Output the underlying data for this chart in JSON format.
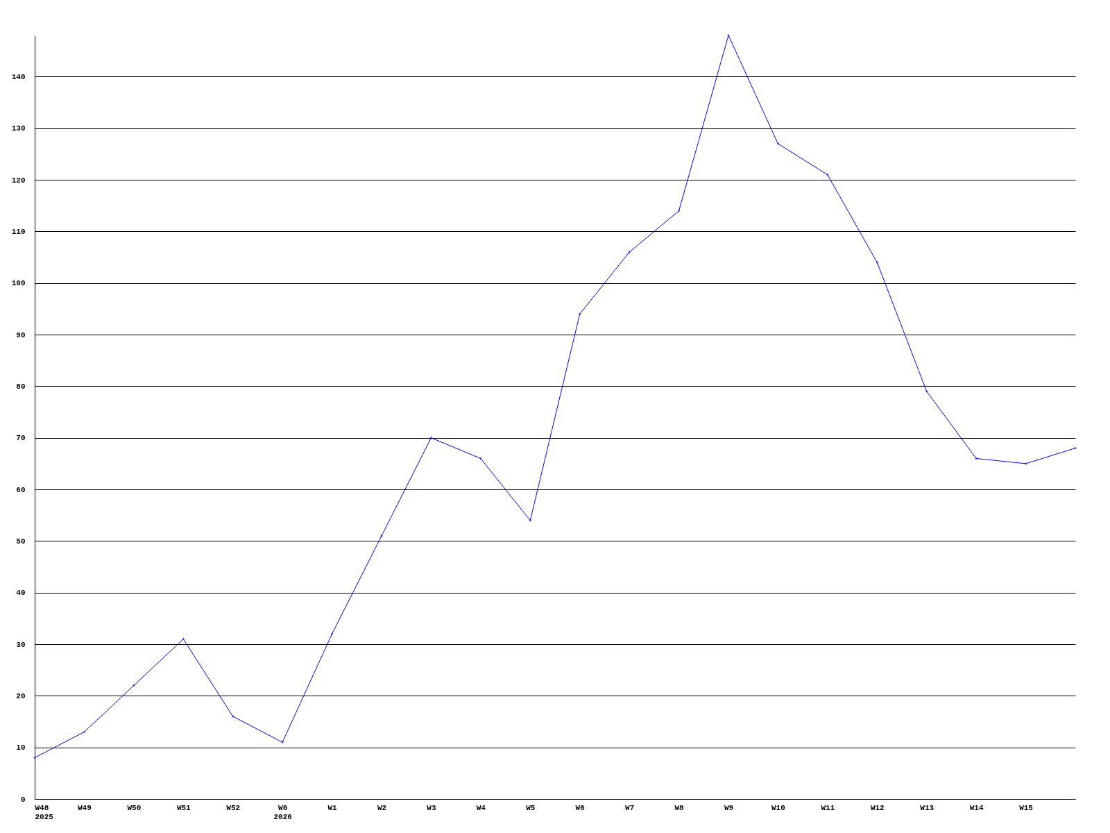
{
  "chart_data": {
    "type": "line",
    "categories": [
      "W48\n2025",
      "W49",
      "W50",
      "W51",
      "W52",
      "W0\n2026",
      "W1",
      "W2",
      "W3",
      "W4",
      "W5",
      "W6",
      "W7",
      "W8",
      "W9",
      "W10",
      "W11",
      "W12",
      "W13",
      "W14",
      "W15",
      null
    ],
    "series": [
      {
        "color": "#0000ff",
        "values": [
          8,
          13,
          22,
          31,
          16,
          11,
          32,
          51,
          70,
          66,
          54,
          94,
          106,
          114,
          148,
          127,
          121,
          104,
          79,
          66,
          65,
          68
        ]
      }
    ],
    "ylim": [
      0,
      148
    ],
    "yticks": [
      0,
      10,
      20,
      30,
      40,
      50,
      60,
      70,
      80,
      90,
      100,
      110,
      120,
      130,
      140
    ],
    "grid": "y",
    "marker": "diamond",
    "line_style": "solid"
  }
}
